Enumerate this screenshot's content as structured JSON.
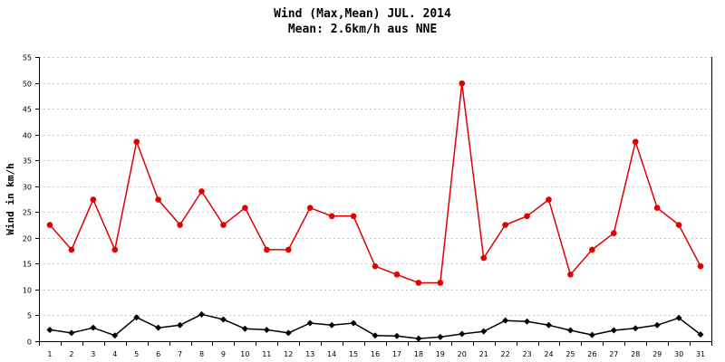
{
  "chart_data": {
    "type": "line",
    "title": "Wind (Max,Mean) JUL. 2014",
    "subtitle": "Mean: 2.6km/h aus NNE",
    "xlabel": "",
    "ylabel": "Wind in km/h",
    "x": [
      1,
      2,
      3,
      4,
      5,
      6,
      7,
      8,
      9,
      10,
      11,
      12,
      13,
      14,
      15,
      16,
      17,
      18,
      19,
      20,
      21,
      22,
      23,
      24,
      25,
      26,
      27,
      28,
      29,
      30,
      31
    ],
    "ylim": [
      0,
      55
    ],
    "yticks": [
      0,
      5,
      10,
      15,
      20,
      25,
      30,
      35,
      40,
      45,
      50,
      55
    ],
    "grid": true,
    "series": [
      {
        "color": "#e00000",
        "marker": "circle",
        "values": [
          22.5,
          17.7,
          27.4,
          17.7,
          38.6,
          27.4,
          22.5,
          29.0,
          22.5,
          25.8,
          17.7,
          17.7,
          25.8,
          24.2,
          24.2,
          14.5,
          12.9,
          11.3,
          11.3,
          49.9,
          16.1,
          22.5,
          24.2,
          27.4,
          12.9,
          17.7,
          20.9,
          38.6,
          25.8,
          22.5,
          14.5
        ]
      },
      {
        "color": "#000000",
        "marker": "diamond",
        "values": [
          2.2,
          1.6,
          2.6,
          1.1,
          4.6,
          2.6,
          3.1,
          5.2,
          4.2,
          2.4,
          2.2,
          1.6,
          3.5,
          3.1,
          3.5,
          1.1,
          1.0,
          0.5,
          0.8,
          1.4,
          1.9,
          4.0,
          3.8,
          3.1,
          2.1,
          1.2,
          2.1,
          2.5,
          3.1,
          4.5,
          1.3
        ]
      }
    ]
  }
}
